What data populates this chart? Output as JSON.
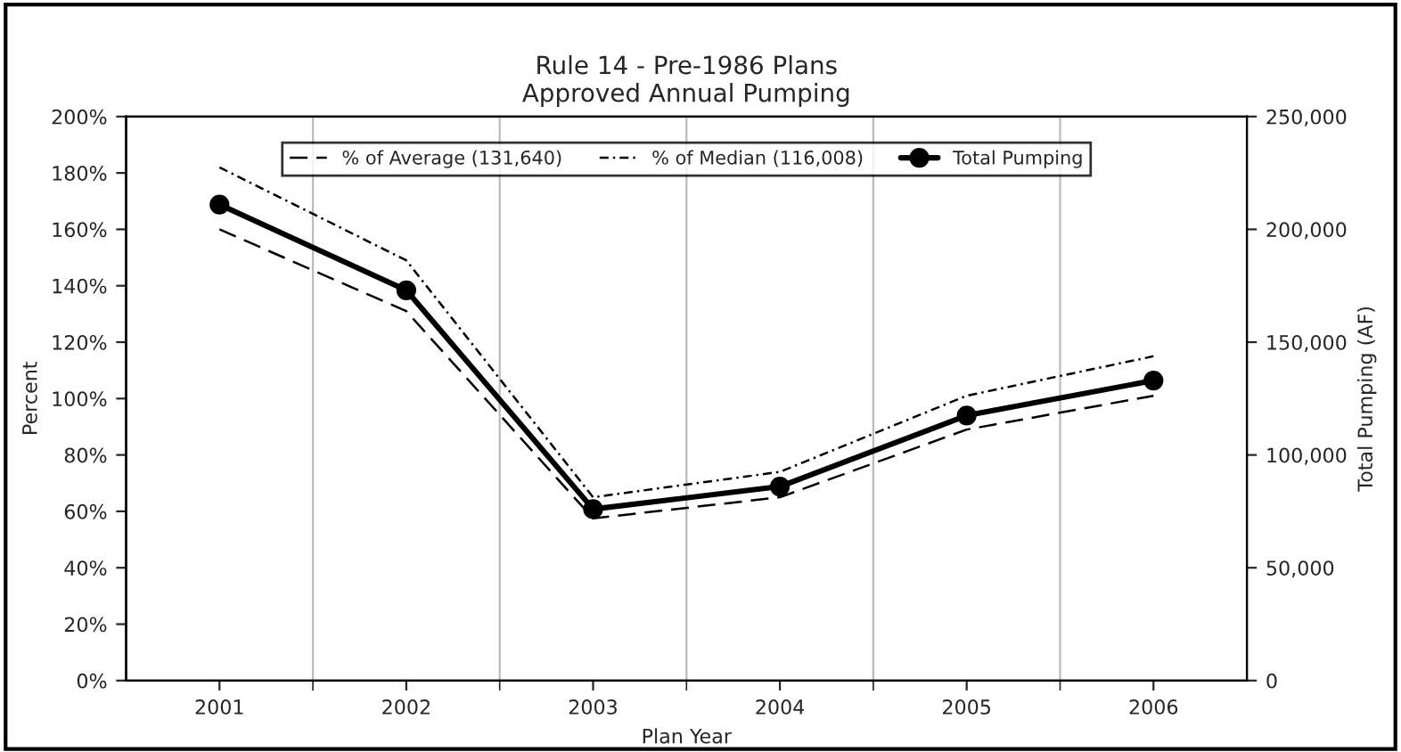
{
  "chart_data": {
    "type": "line",
    "title": "Rule 14 - Pre-1986 Plans\nApproved Annual Pumping",
    "xlabel": "Plan Year",
    "ylabel": "Percent",
    "y2label": "Total Pumping (AF)",
    "categories": [
      "2001",
      "2002",
      "2003",
      "2004",
      "2005",
      "2006"
    ],
    "series": [
      {
        "name": "% of Average (131,640)",
        "color": "#000000",
        "line_style": "dashed",
        "marker": "none",
        "values": [
          160,
          131,
          57.5,
          65,
          89,
          101
        ]
      },
      {
        "name": "% of Median (116,008)",
        "color": "#000000",
        "line_style": "dotted",
        "marker": "none",
        "values": [
          182,
          149,
          65,
          74,
          101,
          115
        ]
      },
      {
        "name": "Total Pumping",
        "color": "#000000",
        "line_style": "solid",
        "marker": "circle",
        "axis": "y2",
        "values": [
          211000,
          173000,
          76000,
          86000,
          117500,
          133000
        ]
      }
    ],
    "ylim": [
      0,
      200
    ],
    "yticks": [
      {
        "value": 0,
        "label": "0%"
      },
      {
        "value": 20,
        "label": "20%"
      },
      {
        "value": 40,
        "label": "40%"
      },
      {
        "value": 60,
        "label": "60%"
      },
      {
        "value": 80,
        "label": "80%"
      },
      {
        "value": 100,
        "label": "100%"
      },
      {
        "value": 120,
        "label": "120%"
      },
      {
        "value": 140,
        "label": "140%"
      },
      {
        "value": 160,
        "label": "160%"
      },
      {
        "value": 180,
        "label": "180%"
      },
      {
        "value": 200,
        "label": "200%"
      }
    ],
    "y2lim": [
      0,
      250000
    ],
    "y2ticks": [
      {
        "value": 0,
        "label": "0"
      },
      {
        "value": 50000,
        "label": "50,000"
      },
      {
        "value": 100000,
        "label": "100,000"
      },
      {
        "value": 150000,
        "label": "150,000"
      },
      {
        "value": 200000,
        "label": "200,000"
      },
      {
        "value": 250000,
        "label": "250,000"
      }
    ],
    "grid": "x",
    "legend": "top"
  }
}
